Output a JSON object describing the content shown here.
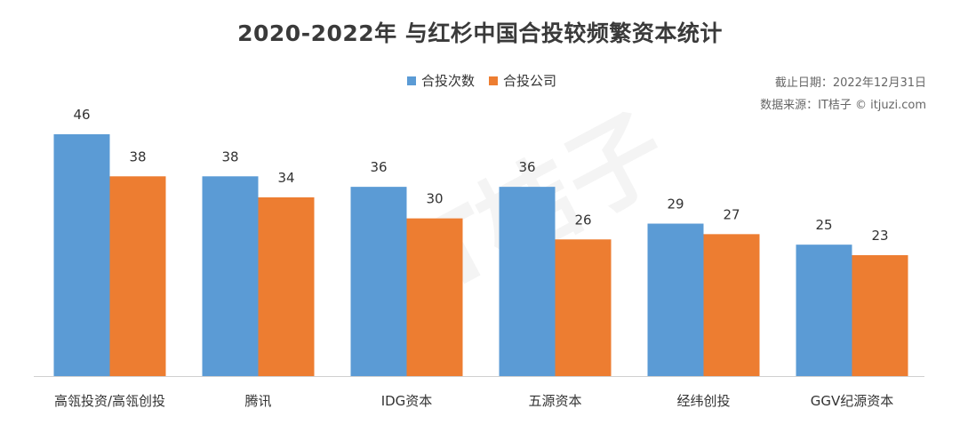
{
  "chart_data": {
    "type": "bar",
    "title": "2020-2022年 与红杉中国合投较频繁资本统计",
    "categories": [
      "高瓴投资/高瓴创投",
      "腾讯",
      "IDG资本",
      "五源资本",
      "经纬创投",
      "GGV纪源资本"
    ],
    "series": [
      {
        "name": "合投次数",
        "values": [
          46,
          38,
          36,
          36,
          29,
          25
        ],
        "color": "#5B9BD5"
      },
      {
        "name": "合投公司",
        "values": [
          38,
          34,
          30,
          26,
          27,
          23
        ],
        "color": "#ED7D31"
      }
    ],
    "ylim": [
      0,
      46
    ],
    "xlabel": "",
    "ylabel": "",
    "grid": false,
    "legend_position": "top-center"
  },
  "notes": {
    "cutoff": "截止日期：2022年12月31日",
    "source": "数据来源：IT桔子 © itjuzi.com"
  },
  "watermark": "IT桔子"
}
